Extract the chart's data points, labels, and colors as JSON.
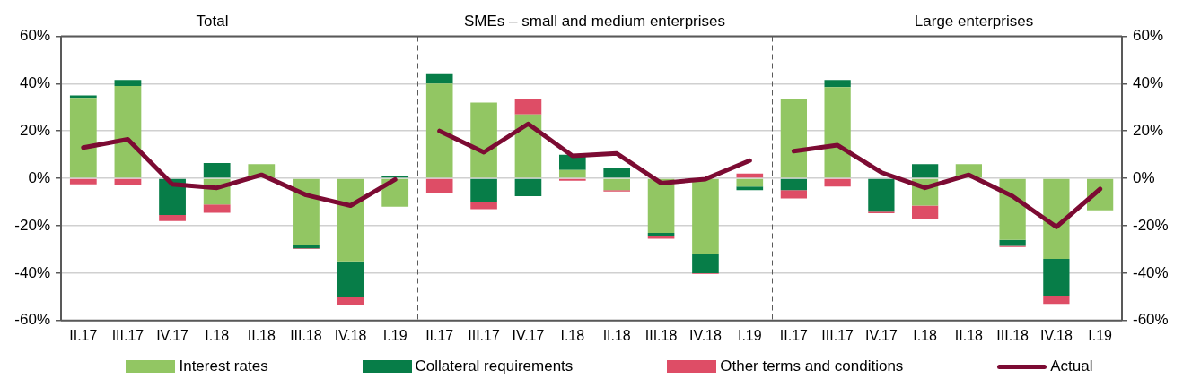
{
  "chart_data": [
    {
      "type": "bar",
      "title": "Total",
      "stacked": true,
      "categories": [
        "II.17",
        "III.17",
        "IV.17",
        "I.18",
        "II.18",
        "III.18",
        "IV.18",
        "I.19"
      ],
      "series": [
        {
          "name": "Interest rates",
          "color": "#92c663",
          "values": [
            34,
            39,
            0,
            -11,
            6,
            -28,
            -35,
            -12
          ]
        },
        {
          "name": "Collateral requirements",
          "color": "#077d48",
          "values": [
            1,
            2.5,
            -15.5,
            6.5,
            0,
            -1.5,
            -15,
            1
          ]
        },
        {
          "name": "Other terms and conditions",
          "color": "#de4d66",
          "values": [
            -2.5,
            -3,
            -2.5,
            -3.5,
            0,
            -0.3,
            -3.5,
            0
          ]
        },
        {
          "name": "Actual",
          "type": "line",
          "color": "#7c0b33",
          "values": [
            13,
            16.5,
            -2.5,
            -4,
            1.5,
            -7,
            -11.5,
            -0.5
          ]
        }
      ],
      "ylim": [
        -60,
        60
      ],
      "yticks": [
        {
          "value": -60,
          "label": "-60%"
        },
        {
          "value": -40,
          "label": "-40%"
        },
        {
          "value": -20,
          "label": "-20%"
        },
        {
          "value": 0,
          "label": "0%"
        },
        {
          "value": 20,
          "label": "20%"
        },
        {
          "value": 40,
          "label": "40%"
        },
        {
          "value": 60,
          "label": "60%"
        }
      ],
      "grid": "y",
      "legend": "bottom",
      "marker": "none"
    },
    {
      "type": "bar",
      "title": "SMEs – small and medium enterprises",
      "stacked": true,
      "categories": [
        "II.17",
        "III.17",
        "IV.17",
        "I.18",
        "II.18",
        "III.18",
        "IV.18",
        "I.19"
      ],
      "series": [
        {
          "color": "#92c663",
          "values": [
            40,
            32,
            27,
            3.5,
            -5,
            -23,
            -32,
            -3.5
          ]
        },
        {
          "color": "#077d48",
          "values": [
            4,
            -10,
            -7.5,
            6.5,
            4.5,
            -1.5,
            -8,
            -1.5
          ]
        },
        {
          "color": "#de4d66",
          "values": [
            -6,
            -3,
            6.5,
            -1,
            -0.5,
            -1,
            -0.3,
            2
          ]
        },
        {
          "type": "line",
          "color": "#7c0b33",
          "values": [
            20,
            11,
            23,
            9.5,
            10.5,
            -2,
            -0.3,
            7.5
          ]
        }
      ],
      "ylim": [
        -60,
        60
      ],
      "yticks": [
        -60,
        -40,
        -20,
        0,
        20,
        40,
        60
      ],
      "tick_labels": "x",
      "grid": "y",
      "marker": "none"
    },
    {
      "type": "bar",
      "title": "Large enterprises",
      "stacked": true,
      "categories": [
        "II.17",
        "III.17",
        "IV.17",
        "I.18",
        "II.18",
        "III.18",
        "IV.18",
        "I.19"
      ],
      "series": [
        {
          "axis": "y2",
          "color": "#92c663",
          "values": [
            33.5,
            38.5,
            0,
            -11.5,
            6,
            -26,
            -34,
            -13.5
          ]
        },
        {
          "axis": "y2",
          "color": "#077d48",
          "values": [
            -5,
            3,
            -14,
            6,
            null,
            -2.5,
            -15.5,
            0
          ]
        },
        {
          "axis": "y2",
          "color": "#de4d66",
          "values": [
            -3.5,
            -3.5,
            -0.7,
            -5.5,
            0,
            -0.5,
            -3.5,
            null
          ]
        },
        {
          "axis": "y2",
          "type": "line",
          "color": "#7c0b33",
          "values": [
            11.5,
            14,
            2.5,
            -4,
            1.5,
            -7.5,
            -20.5,
            -4.5
          ]
        }
      ],
      "y2lim": [
        -60,
        60
      ],
      "y2ticks": [
        {
          "value": -60,
          "label": "-60%"
        },
        {
          "value": -40,
          "label": "-40%"
        },
        {
          "value": -20,
          "label": "-20%"
        },
        {
          "value": 0,
          "label": "0%"
        },
        {
          "value": 20,
          "label": "20%"
        },
        {
          "value": 40,
          "label": "40%"
        },
        {
          "value": 60,
          "label": "60%"
        }
      ],
      "grid": "y",
      "marker": "none"
    }
  ]
}
